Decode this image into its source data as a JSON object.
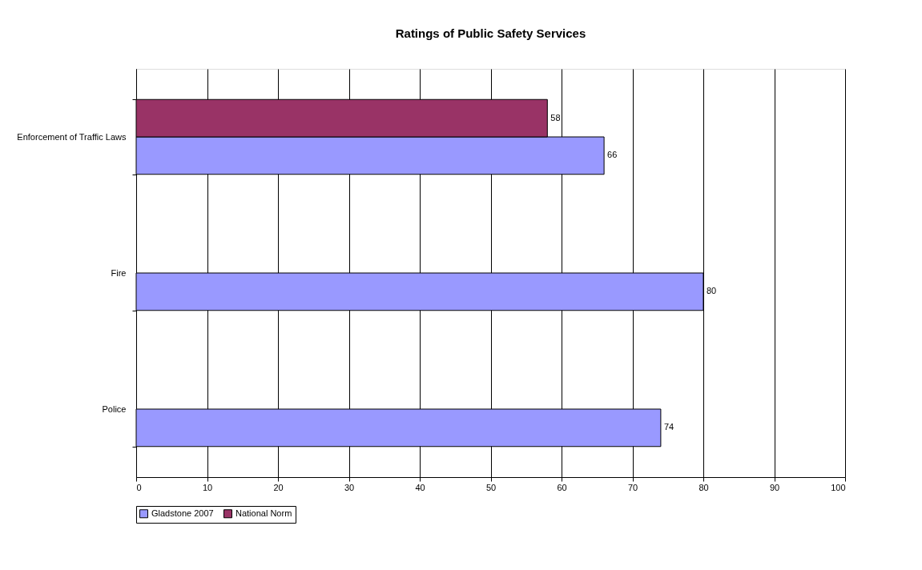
{
  "chart_data": {
    "type": "bar",
    "orientation": "horizontal",
    "title": "Ratings of Public Safety Services",
    "categories": [
      "Enforcement of Traffic Laws",
      "Fire",
      "Police"
    ],
    "series": [
      {
        "name": "Gladstone 2007",
        "color": "#9999ff",
        "values": [
          66,
          80,
          74
        ]
      },
      {
        "name": "National Norm",
        "color": "#993366",
        "values": [
          58,
          null,
          null
        ]
      }
    ],
    "xlim": [
      0,
      100
    ],
    "xticks": [
      0,
      10,
      20,
      30,
      40,
      50,
      60,
      70,
      80,
      90,
      100
    ],
    "grid": "x",
    "legend": "bottom",
    "data_labels": true
  }
}
